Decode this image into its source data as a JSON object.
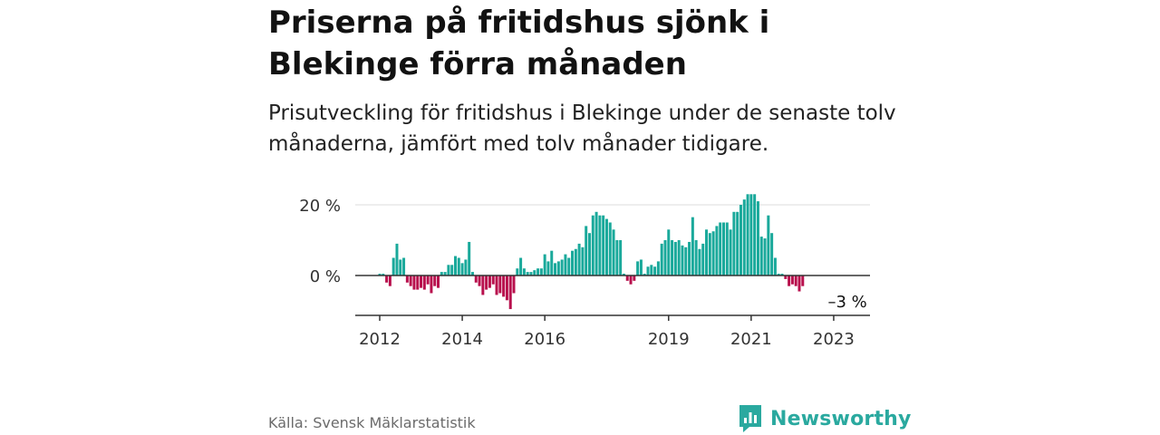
{
  "header": {
    "title": "Priserna på fritidshus sjönk i Blekinge förra månaden",
    "subtitle": "Prisutveckling för fritidshus i Blekinge under de senaste tolv månaderna, jämfört med tolv månader tidigare."
  },
  "footer": {
    "source": "Källa: Svensk Mäklarstatistik",
    "brand": "Newsworthy"
  },
  "colors": {
    "positive": "#1aa99b",
    "negative": "#b8104d",
    "brand": "#2aa99f",
    "grid": "#dddddd",
    "axis": "#333333"
  },
  "icons": {
    "brand_logo": "bar-chart-speech-bubble-icon"
  },
  "chart_data": {
    "type": "bar",
    "title": "Priserna på fritidshus sjönk i Blekinge förra månaden",
    "xlabel": "",
    "ylabel": "",
    "ylim": [
      -11,
      22
    ],
    "grid": true,
    "legend": "none",
    "y_ticks": [
      {
        "value": 0,
        "label": "0 %"
      },
      {
        "value": 20,
        "label": "20 %"
      }
    ],
    "x_ticks": [
      {
        "value": "2012-01",
        "label": "2012"
      },
      {
        "value": "2014-01",
        "label": "2014"
      },
      {
        "value": "2016-01",
        "label": "2016"
      },
      {
        "value": "2019-01",
        "label": "2019"
      },
      {
        "value": "2021-01",
        "label": "2021"
      },
      {
        "value": "2023-01",
        "label": "2023"
      }
    ],
    "start_month": "2012-01",
    "annotations": [
      {
        "x": "2023-05",
        "text": "–3 %"
      }
    ],
    "series": [
      {
        "values": [
          0.5,
          0.5,
          -2,
          -3,
          5,
          9,
          4.5,
          5,
          -2,
          -3,
          -4,
          -4,
          -3.5,
          -4,
          -2.5,
          -5,
          -3,
          -3.5,
          1,
          1,
          3,
          3,
          5.5,
          5,
          3.5,
          4.5,
          9.5,
          1,
          -2,
          -3,
          -5.5,
          -4,
          -3.5,
          -2.5,
          -5.5,
          -5,
          -6,
          -7,
          -9.5,
          -5,
          2,
          5,
          2,
          1,
          1,
          1.5,
          2,
          2,
          6,
          4,
          7,
          3.5,
          4,
          4.5,
          6,
          5,
          7,
          7.5,
          9,
          8,
          14,
          12,
          17,
          18,
          17,
          17,
          16,
          15,
          13,
          10,
          10,
          0.5,
          -1.5,
          -2.5,
          -1.5,
          4,
          4.5,
          0.5,
          2.5,
          3,
          2.5,
          4,
          9,
          10,
          13,
          10,
          9.5,
          10,
          8.5,
          8,
          9.5,
          16.5,
          10,
          7.5,
          9,
          13,
          12,
          12.5,
          14,
          15,
          15,
          15,
          13,
          18,
          18,
          20,
          21.5,
          23,
          23,
          23,
          21,
          11,
          10.5,
          17,
          12,
          5,
          0.5,
          0.5,
          -1,
          -3,
          -2.5,
          -3,
          -4.5,
          -3
        ]
      }
    ]
  }
}
